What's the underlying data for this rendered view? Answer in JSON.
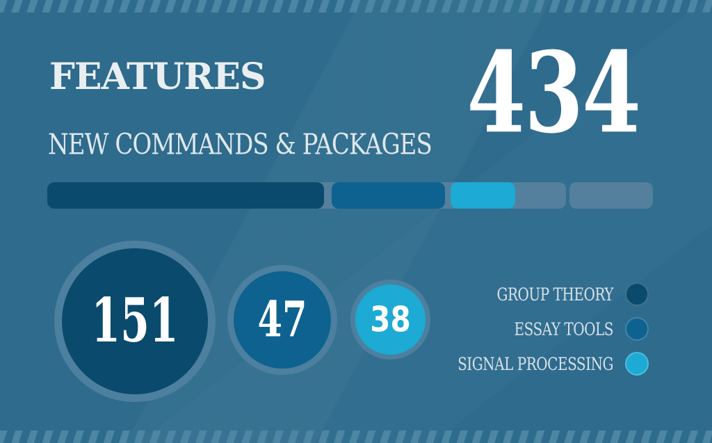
{
  "header": {
    "title": "FEATURES",
    "subtitle": "NEW COMMANDS & PACKAGES"
  },
  "chart_data": {
    "type": "bar",
    "title": "FEATURES",
    "subtitle": "NEW COMMANDS & PACKAGES",
    "total": 434,
    "series": [
      {
        "name": "GROUP THEORY",
        "value": 151,
        "color": "#0a4a6d"
      },
      {
        "name": "ESSAY TOOLS",
        "value": 47,
        "color": "#0d6290"
      },
      {
        "name": "SIGNAL PROCESSING",
        "value": 38,
        "color": "#1daad4"
      }
    ],
    "legend_position": "right",
    "layout": {
      "track_segments": 7,
      "bar_style": "segmented-rounded",
      "bubbles": "proportional-circles"
    }
  },
  "colors": {
    "background": "#2e6b8d",
    "stripe": "#4d86a3",
    "track": "#54809d",
    "circle_ring": "#4d809e",
    "heading_text": "#e9eef1",
    "number_text": "#ffffff"
  }
}
